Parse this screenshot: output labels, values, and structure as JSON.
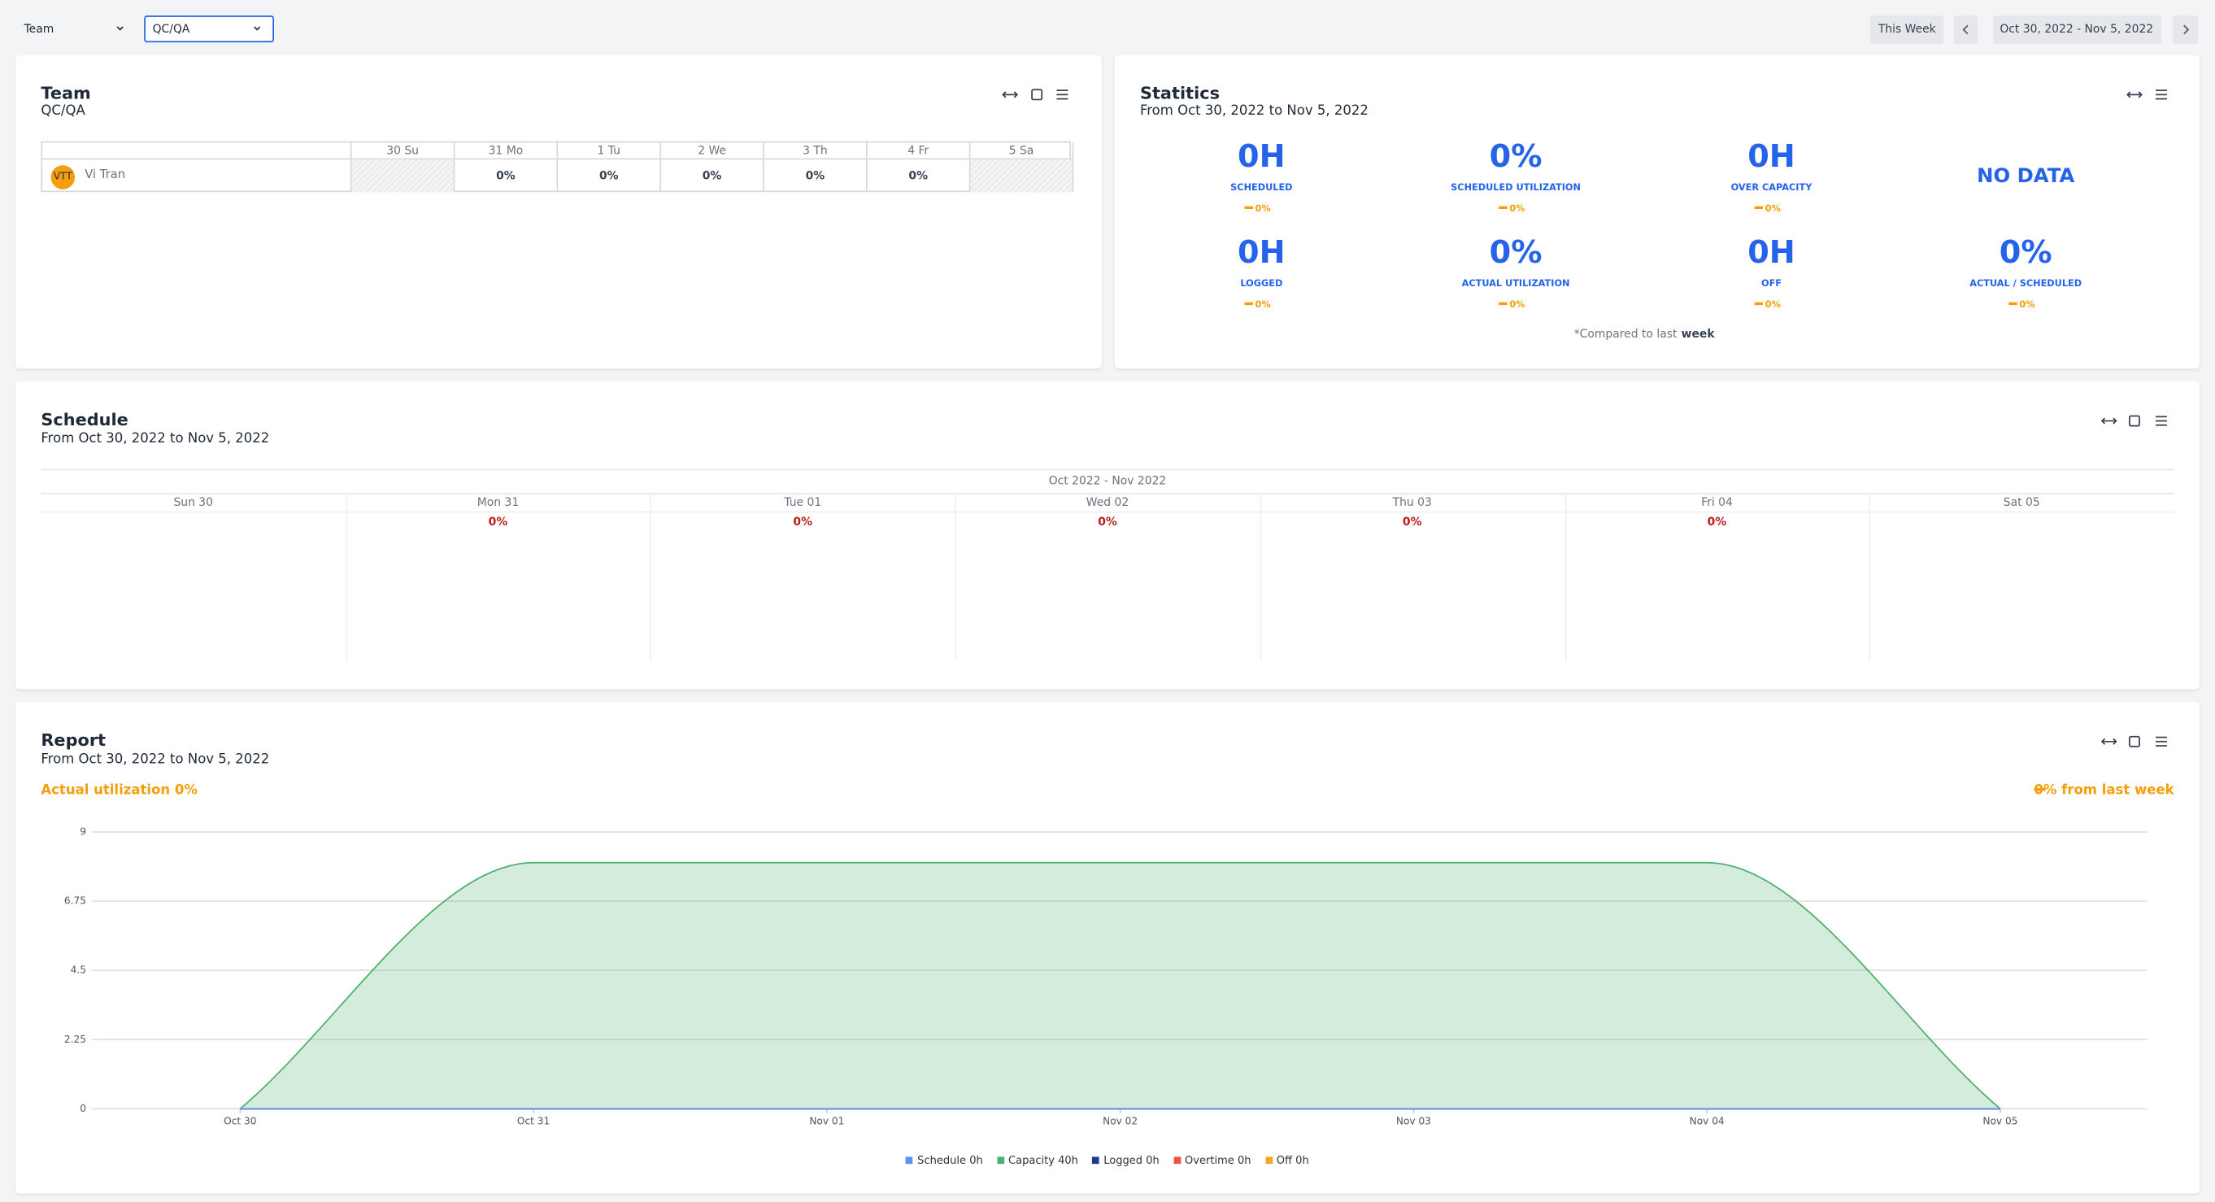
{
  "toolbar": {
    "group": "Team",
    "team": "QC/QA",
    "this_week": "This Week",
    "date_range": "Oct 30, 2022 - Nov 5, 2022"
  },
  "team_panel": {
    "title": "Team",
    "subtitle": "QC/QA",
    "columns": [
      "30 Su",
      "31 Mo",
      "1 Tu",
      "2 We",
      "3 Th",
      "4 Fr",
      "5 Sa"
    ],
    "rows": [
      {
        "avatar": "VTT",
        "name": "Vi Tran",
        "cells": [
          null,
          "0%",
          "0%",
          "0%",
          "0%",
          "0%",
          null
        ]
      }
    ]
  },
  "statistics": {
    "title": "Statitics",
    "subtitle": "From Oct 30, 2022 to Nov 5, 2022",
    "items": [
      {
        "value": "0H",
        "label": "SCHEDULED",
        "change": "0%"
      },
      {
        "value": "0%",
        "label": "SCHEDULED UTILIZATION",
        "change": "0%"
      },
      {
        "value": "0H",
        "label": "OVER CAPACITY",
        "change": "0%"
      },
      {
        "value": "NO DATA"
      },
      {
        "value": "0H",
        "label": "LOGGED",
        "change": "0%"
      },
      {
        "value": "0%",
        "label": "ACTUAL UTILIZATION",
        "change": "0%"
      },
      {
        "value": "0H",
        "label": "OFF",
        "change": "0%"
      },
      {
        "value": "0%",
        "label": "ACTUAL / SCHEDULED",
        "change": "0%"
      }
    ],
    "footnote": "*Compared to last",
    "footnote_bold": "week"
  },
  "schedule": {
    "title": "Schedule",
    "subtitle": "From Oct 30, 2022 to Nov 5, 2022",
    "range": "Oct 2022 - Nov 2022",
    "days": [
      "Sun 30",
      "Mon 31",
      "Tue 01",
      "Wed 02",
      "Thu 03",
      "Fri 04",
      "Sat 05"
    ],
    "values": [
      null,
      "0%",
      "0%",
      "0%",
      "0%",
      "0%",
      null
    ]
  },
  "report": {
    "title": "Report",
    "subtitle": "From Oct 30, 2022 to Nov 5, 2022",
    "utilization": "Actual utilization 0%",
    "change": "0% from last week"
  },
  "chart_data": {
    "type": "area",
    "categories": [
      "Oct 30",
      "Oct 31",
      "Nov 01",
      "Nov 02",
      "Nov 03",
      "Nov 04",
      "Nov 05"
    ],
    "series": [
      {
        "name": "Schedule 0h",
        "color": "#5b8ff9",
        "values": [
          0,
          0,
          0,
          0,
          0,
          0,
          0
        ]
      },
      {
        "name": "Capacity 40h",
        "color": "#4caf6e",
        "values": [
          0,
          8,
          8,
          8,
          8,
          8,
          0
        ]
      },
      {
        "name": "Logged 0h",
        "color": "#1e3a8a",
        "values": [
          0,
          0,
          0,
          0,
          0,
          0,
          0
        ]
      },
      {
        "name": "Overtime 0h",
        "color": "#e8553a",
        "values": [
          0,
          0,
          0,
          0,
          0,
          0,
          0
        ]
      },
      {
        "name": "Off 0h",
        "color": "#f5a623",
        "values": [
          0,
          0,
          0,
          0,
          0,
          0,
          0
        ]
      }
    ],
    "ylim": [
      0,
      9
    ],
    "yticks": [
      0,
      2.25,
      4.5,
      6.75,
      9
    ],
    "grid": true,
    "legend": "bottom"
  }
}
